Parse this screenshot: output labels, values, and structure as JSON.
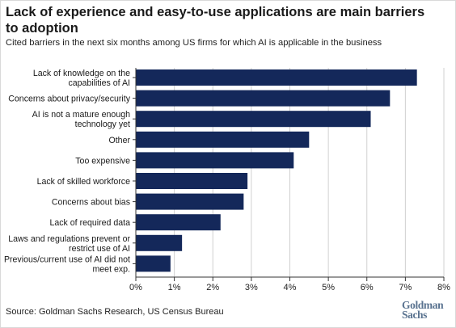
{
  "title": "Lack of experience and easy-to-use applications are main barriers to adoption",
  "subtitle": "Cited barriers in the next six months among US firms for which AI is applicable in the business",
  "source": "Source: Goldman Sachs Research, US Census Bureau",
  "logo": {
    "line1": "Goldman",
    "line2": "Sachs"
  },
  "colors": {
    "bar": "#14285a",
    "grid": "#d0d0d0",
    "axis": "#333333"
  },
  "chart_data": {
    "type": "bar",
    "orientation": "horizontal",
    "title": "",
    "xlabel": "",
    "ylabel": "",
    "xlim": [
      0,
      8
    ],
    "xticks": [
      "0%",
      "1%",
      "2%",
      "3%",
      "4%",
      "5%",
      "6%",
      "7%",
      "8%"
    ],
    "grid": true,
    "categories": [
      [
        "Lack of knowledge on the",
        "capabilities of AI"
      ],
      [
        "Concerns about privacy/security"
      ],
      [
        "AI is not a mature enough",
        "technology yet"
      ],
      [
        "Other"
      ],
      [
        "Too expensive"
      ],
      [
        "Lack of skilled workforce"
      ],
      [
        "Concerns about bias"
      ],
      [
        "Lack of required data"
      ],
      [
        "Laws and regulations prevent or",
        "restrict use of AI"
      ],
      [
        "Previous/current use of AI did not",
        "meet exp."
      ]
    ],
    "values": [
      7.3,
      6.6,
      6.1,
      4.5,
      4.1,
      2.9,
      2.8,
      2.2,
      1.2,
      0.9
    ]
  }
}
